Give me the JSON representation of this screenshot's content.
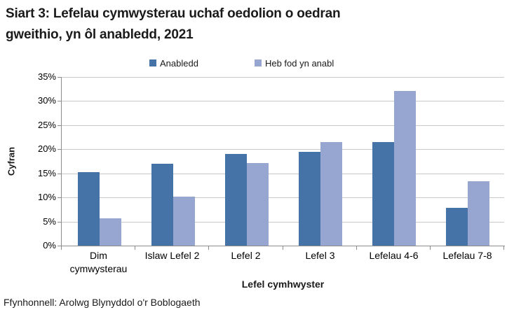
{
  "title": {
    "line1": "Siart 3: Lefelau cymwysterau uchaf oedolion o oedran",
    "line2": "gweithio, yn ôl anabledd, 2021"
  },
  "source": "Ffynhonnell: Arolwg Blynyddol o'r Boblogaeth",
  "chart_data": {
    "type": "bar",
    "title": "Siart 3: Lefelau cymwysterau uchaf oedolion o oedran gweithio, yn ôl anabledd, 2021",
    "categories": [
      "Dim cymwysterau",
      "Islaw Lefel 2",
      "Lefel 2",
      "Lefel 3",
      "Lefelau 4-6",
      "Lefelau 7-8"
    ],
    "series": [
      {
        "name": "Anabledd",
        "color": "#4573A7",
        "values": [
          15.2,
          17.0,
          19.0,
          19.5,
          21.5,
          7.8
        ]
      },
      {
        "name": "Heb fod yn anabl",
        "color": "#96A6D1",
        "values": [
          5.6,
          10.2,
          17.1,
          21.5,
          32.1,
          13.4
        ]
      }
    ],
    "xlabel": "Lefel cymhwyster",
    "ylabel": "Cyfran",
    "ylim": [
      0,
      35
    ],
    "ytick_step": 5,
    "ytick_suffix": "%",
    "grid": true,
    "legend_position": "top-center"
  },
  "colors": {
    "gridline": "#c8c8c8",
    "axis": "#8c8c8c",
    "text": "#1a1a1a"
  }
}
